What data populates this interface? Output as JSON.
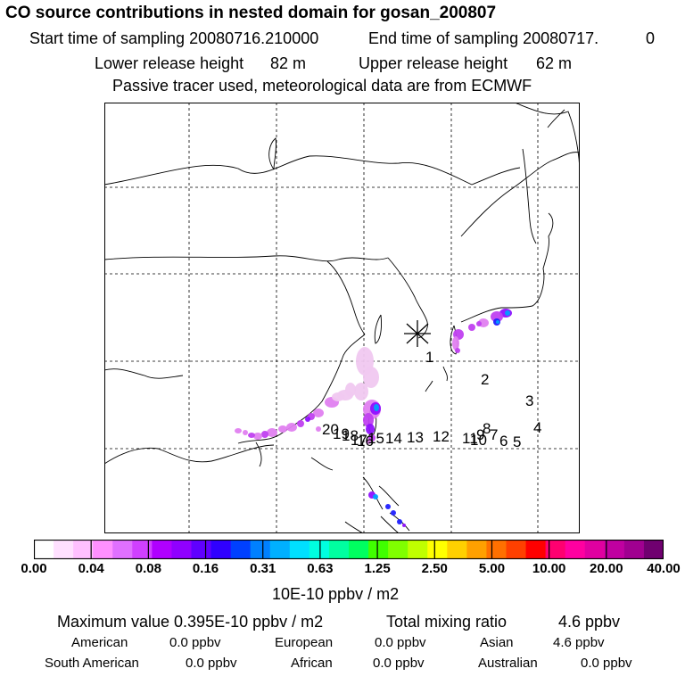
{
  "header": {
    "title": "CO  source contributions in nested domain for gosan_200807",
    "start_label": "Start time of sampling 20080716.210000",
    "end_label": "End time of sampling 20080717.",
    "end_suffix": "0",
    "lower_label": "Lower release height",
    "lower_value": "82 m",
    "upper_label": "Upper release height",
    "upper_value": "62 m",
    "tracer_note": "Passive tracer used, meteorological data are from ECMWF"
  },
  "map": {
    "receptor_marker": "asterisk-icon",
    "trajectory_labels": [
      "1",
      "2",
      "3",
      "4",
      "5",
      "6",
      "7",
      "8",
      "9",
      "10",
      "11",
      "12",
      "13",
      "14",
      "15",
      "16",
      "17",
      "18",
      "19",
      "20"
    ],
    "plume_colors": [
      "#f0c8f0",
      "#e080f0",
      "#c040f0",
      "#9010ff",
      "#2020ff",
      "#00a0ff"
    ]
  },
  "colorbar": {
    "colors": [
      "#ffffff",
      "#ffe0ff",
      "#ffc0ff",
      "#ff90ff",
      "#e070ff",
      "#d040ff",
      "#b000ff",
      "#9000ff",
      "#6000ff",
      "#3000ff",
      "#0040ff",
      "#0080ff",
      "#00b0ff",
      "#00e0ff",
      "#00ffe0",
      "#00ffa0",
      "#00ff60",
      "#40ff00",
      "#80ff00",
      "#c0ff00",
      "#ffff00",
      "#ffd000",
      "#ffa000",
      "#ff7000",
      "#ff4000",
      "#ff0000",
      "#ff0070",
      "#ff00a0",
      "#e000a0",
      "#c000a0",
      "#a00090",
      "#700070"
    ],
    "tick_labels": [
      "0.00",
      "0.04",
      "0.08",
      "0.16",
      "0.31",
      "0.63",
      "1.25",
      "2.50",
      "5.00",
      "10.00",
      "20.00",
      "40.00"
    ],
    "unit": "10E-10 ppbv / m2"
  },
  "footer": {
    "max_label": "Maximum value  0.395E-10 ppbv / m2",
    "total_label": "Total mixing ratio",
    "total_value": "4.6 ppbv",
    "american_label": "American",
    "american_value": "0.0 ppbv",
    "european_label": "European",
    "european_value": "0.0 ppbv",
    "asian_label": "Asian",
    "asian_value": "4.6 ppbv",
    "south_american_label": "South American",
    "south_american_value": "0.0 ppbv",
    "african_label": "African",
    "african_value": "0.0 ppbv",
    "australian_label": "Australian",
    "australian_value": "0.0 ppbv"
  }
}
